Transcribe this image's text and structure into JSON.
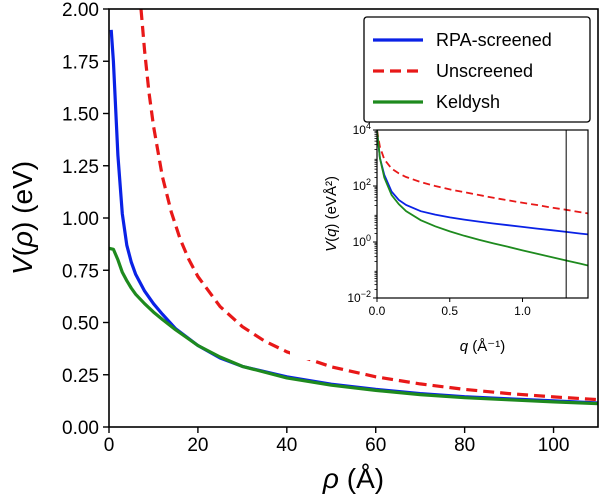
{
  "chart_data": [
    {
      "id": "main",
      "type": "line",
      "xlabel": "ρ (Å)",
      "ylabel": "V(ρ) (eV)",
      "xlim": [
        0,
        110
      ],
      "ylim": [
        0,
        2.0
      ],
      "xticks": [
        0,
        20,
        40,
        60,
        80,
        100
      ],
      "yticks": [
        0.0,
        0.25,
        0.5,
        0.75,
        1.0,
        1.25,
        1.5,
        1.75,
        2.0
      ],
      "xtick_labels": [
        "0",
        "20",
        "40",
        "60",
        "80",
        "100"
      ],
      "ytick_labels": [
        "0.00",
        "0.25",
        "0.50",
        "0.75",
        "1.00",
        "1.25",
        "1.50",
        "1.75",
        "2.00"
      ],
      "legend_position": "top-right",
      "series": [
        {
          "name": "RPA-screened",
          "color": "#0a22e6",
          "style": "solid",
          "x": [
            0.5,
            1,
            2,
            3,
            4,
            5,
            6,
            8,
            10,
            12,
            15,
            20,
            25,
            30,
            40,
            50,
            60,
            70,
            80,
            90,
            100,
            110
          ],
          "y": [
            1.9,
            1.75,
            1.3,
            1.02,
            0.87,
            0.79,
            0.73,
            0.65,
            0.59,
            0.54,
            0.47,
            0.39,
            0.33,
            0.29,
            0.24,
            0.205,
            0.18,
            0.16,
            0.145,
            0.135,
            0.125,
            0.115
          ]
        },
        {
          "name": "Unscreened",
          "color": "#e81818",
          "style": "dashed",
          "x": [
            7.2,
            8,
            9,
            10,
            12,
            14,
            16,
            18,
            20,
            25,
            30,
            35,
            40,
            50,
            60,
            70,
            80,
            90,
            100,
            110
          ],
          "y": [
            2.0,
            1.8,
            1.6,
            1.44,
            1.2,
            1.03,
            0.9,
            0.8,
            0.72,
            0.576,
            0.48,
            0.411,
            0.36,
            0.288,
            0.24,
            0.206,
            0.18,
            0.16,
            0.144,
            0.131
          ]
        },
        {
          "name": "Keldysh",
          "color": "#1e8a1e",
          "style": "solid",
          "x": [
            0,
            1,
            2,
            3,
            4,
            5,
            6,
            8,
            10,
            12,
            15,
            20,
            25,
            30,
            40,
            50,
            60,
            70,
            80,
            90,
            100,
            110
          ],
          "y": [
            0.855,
            0.85,
            0.8,
            0.74,
            0.7,
            0.665,
            0.635,
            0.59,
            0.55,
            0.515,
            0.465,
            0.39,
            0.335,
            0.29,
            0.235,
            0.2,
            0.175,
            0.155,
            0.14,
            0.13,
            0.12,
            0.112
          ]
        }
      ]
    },
    {
      "id": "inset",
      "type": "line",
      "xlabel": "q (Å⁻¹)",
      "ylabel": "V(q) (eVÅ²)",
      "yscale": "log",
      "xlim": [
        0,
        1.45
      ],
      "ylim_log10": [
        -2,
        4
      ],
      "xticks": [
        0.0,
        0.5,
        1.0
      ],
      "xtick_labels": [
        "0.0",
        "0.5",
        "1.0"
      ],
      "ytick_exponents": [
        -2,
        0,
        2,
        4
      ],
      "ytick_base": "10",
      "vertical_line_x": 1.3,
      "series": [
        {
          "name": "RPA-screened",
          "color": "#0a22e6",
          "x": [
            0.0,
            0.02,
            0.05,
            0.1,
            0.15,
            0.2,
            0.3,
            0.4,
            0.5,
            0.6,
            0.7,
            0.8,
            0.9,
            1.0,
            1.1,
            1.2,
            1.3,
            1.4,
            1.45
          ],
          "log10_y": [
            4.0,
            3.0,
            2.4,
            1.8,
            1.5,
            1.32,
            1.1,
            0.98,
            0.88,
            0.8,
            0.73,
            0.66,
            0.6,
            0.54,
            0.48,
            0.42,
            0.36,
            0.3,
            0.27
          ]
        },
        {
          "name": "Unscreened",
          "color": "#e81818",
          "x": [
            0.0,
            0.02,
            0.05,
            0.1,
            0.15,
            0.2,
            0.3,
            0.4,
            0.5,
            0.6,
            0.7,
            0.8,
            0.9,
            1.0,
            1.1,
            1.2,
            1.3,
            1.4,
            1.45
          ],
          "log10_y": [
            4.0,
            3.4,
            2.95,
            2.62,
            2.45,
            2.32,
            2.14,
            2.0,
            1.88,
            1.78,
            1.68,
            1.58,
            1.49,
            1.4,
            1.32,
            1.23,
            1.15,
            1.06,
            1.02
          ]
        },
        {
          "name": "Keldysh",
          "color": "#1e8a1e",
          "x": [
            0.0,
            0.02,
            0.05,
            0.1,
            0.15,
            0.2,
            0.3,
            0.4,
            0.5,
            0.6,
            0.7,
            0.8,
            0.9,
            1.0,
            1.1,
            1.2,
            1.3,
            1.4,
            1.45
          ],
          "log10_y": [
            4.0,
            3.0,
            2.3,
            1.68,
            1.35,
            1.1,
            0.78,
            0.56,
            0.38,
            0.22,
            0.08,
            -0.05,
            -0.17,
            -0.3,
            -0.42,
            -0.54,
            -0.66,
            -0.78,
            -0.84
          ]
        }
      ]
    }
  ]
}
